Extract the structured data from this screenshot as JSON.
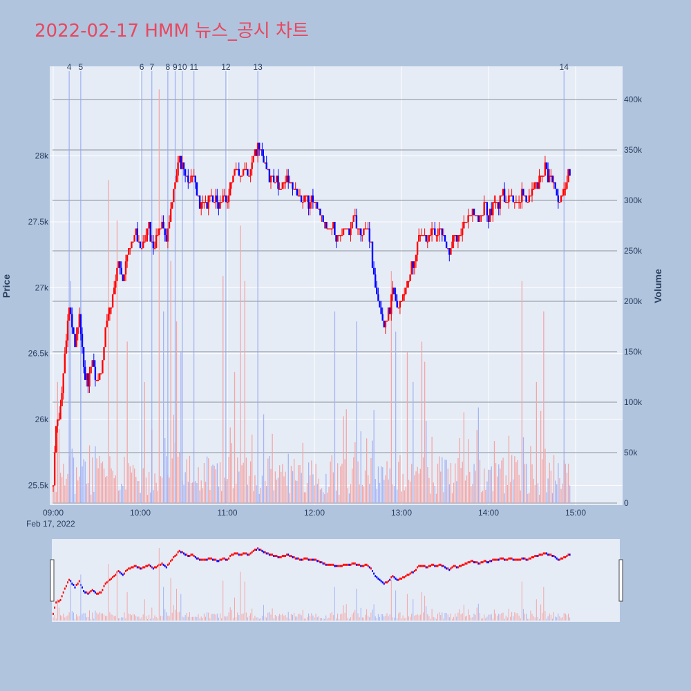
{
  "title": "2022-02-17 HMM 뉴스_공시 차트",
  "chart_data": {
    "type": "candlestick",
    "title": "2022-02-17 HMM 뉴스_공시 차트",
    "ylabel": "Price",
    "y2label": "Volume",
    "date_label": "Feb 17, 2022",
    "price_ylim": [
      25350,
      28680
    ],
    "volume_ylim": [
      0,
      430000
    ],
    "time_range": [
      "09:00",
      "15:30"
    ],
    "x_ticks": [
      "09:00",
      "10:00",
      "11:00",
      "12:00",
      "13:00",
      "14:00",
      "15:00"
    ],
    "price_ticks": [
      {
        "v": 25500,
        "label": "25.5k"
      },
      {
        "v": 26000,
        "label": "26k"
      },
      {
        "v": 26500,
        "label": "26.5k"
      },
      {
        "v": 27000,
        "label": "27k"
      },
      {
        "v": 27500,
        "label": "27.5k"
      },
      {
        "v": 28000,
        "label": "28k"
      }
    ],
    "volume_ticks": [
      {
        "v": 0,
        "label": "0"
      },
      {
        "v": 50000,
        "label": "50k"
      },
      {
        "v": 100000,
        "label": "100k"
      },
      {
        "v": 150000,
        "label": "150k"
      },
      {
        "v": 200000,
        "label": "200k"
      },
      {
        "v": 250000,
        "label": "250k"
      },
      {
        "v": 300000,
        "label": "300k"
      },
      {
        "v": 350000,
        "label": "350k"
      },
      {
        "v": 400000,
        "label": "400k"
      }
    ],
    "price_path": [
      [
        "09:00",
        25500
      ],
      [
        "09:02",
        25950
      ],
      [
        "09:05",
        26050
      ],
      [
        "09:07",
        26350
      ],
      [
        "09:09",
        26600
      ],
      [
        "09:11",
        26850
      ],
      [
        "09:13",
        26700
      ],
      [
        "09:15",
        26550
      ],
      [
        "09:18",
        26800
      ],
      [
        "09:21",
        26400
      ],
      [
        "09:24",
        26300
      ],
      [
        "09:27",
        26450
      ],
      [
        "09:30",
        26300
      ],
      [
        "09:33",
        26350
      ],
      [
        "09:36",
        26700
      ],
      [
        "09:39",
        26850
      ],
      [
        "09:42",
        27000
      ],
      [
        "09:45",
        27200
      ],
      [
        "09:48",
        27050
      ],
      [
        "09:51",
        27250
      ],
      [
        "09:54",
        27350
      ],
      [
        "09:57",
        27400
      ],
      [
        "10:00",
        27300
      ],
      [
        "10:03",
        27350
      ],
      [
        "10:06",
        27450
      ],
      [
        "10:09",
        27300
      ],
      [
        "10:12",
        27400
      ],
      [
        "10:15",
        27500
      ],
      [
        "10:18",
        27350
      ],
      [
        "10:21",
        27600
      ],
      [
        "10:24",
        27800
      ],
      [
        "10:27",
        28000
      ],
      [
        "10:30",
        27900
      ],
      [
        "10:33",
        27800
      ],
      [
        "10:36",
        27850
      ],
      [
        "10:39",
        27700
      ],
      [
        "10:42",
        27650
      ],
      [
        "10:45",
        27650
      ],
      [
        "10:48",
        27700
      ],
      [
        "10:51",
        27650
      ],
      [
        "10:54",
        27600
      ],
      [
        "10:57",
        27700
      ],
      [
        "11:00",
        27650
      ],
      [
        "11:03",
        27850
      ],
      [
        "11:06",
        27900
      ],
      [
        "11:09",
        27850
      ],
      [
        "11:12",
        27900
      ],
      [
        "11:15",
        27850
      ],
      [
        "11:18",
        28000
      ],
      [
        "11:21",
        28100
      ],
      [
        "11:24",
        28000
      ],
      [
        "11:27",
        27900
      ],
      [
        "11:30",
        27850
      ],
      [
        "11:33",
        27800
      ],
      [
        "11:36",
        27750
      ],
      [
        "11:39",
        27800
      ],
      [
        "11:42",
        27850
      ],
      [
        "11:45",
        27750
      ],
      [
        "11:48",
        27700
      ],
      [
        "11:51",
        27650
      ],
      [
        "11:54",
        27700
      ],
      [
        "11:57",
        27650
      ],
      [
        "12:00",
        27650
      ],
      [
        "12:03",
        27600
      ],
      [
        "12:06",
        27500
      ],
      [
        "12:09",
        27450
      ],
      [
        "12:12",
        27450
      ],
      [
        "12:15",
        27400
      ],
      [
        "12:18",
        27400
      ],
      [
        "12:21",
        27450
      ],
      [
        "12:24",
        27450
      ],
      [
        "12:27",
        27500
      ],
      [
        "12:30",
        27450
      ],
      [
        "12:33",
        27400
      ],
      [
        "12:36",
        27450
      ],
      [
        "12:39",
        27300
      ],
      [
        "12:42",
        27000
      ],
      [
        "12:45",
        26850
      ],
      [
        "12:48",
        26700
      ],
      [
        "12:51",
        26800
      ],
      [
        "12:54",
        27000
      ],
      [
        "12:57",
        26850
      ],
      [
        "13:00",
        26900
      ],
      [
        "13:03",
        27000
      ],
      [
        "13:06",
        27100
      ],
      [
        "13:09",
        27200
      ],
      [
        "13:12",
        27400
      ],
      [
        "13:15",
        27400
      ],
      [
        "13:18",
        27350
      ],
      [
        "13:21",
        27450
      ],
      [
        "13:24",
        27400
      ],
      [
        "13:27",
        27450
      ],
      [
        "13:30",
        27350
      ],
      [
        "13:33",
        27250
      ],
      [
        "13:36",
        27400
      ],
      [
        "13:39",
        27350
      ],
      [
        "13:42",
        27450
      ],
      [
        "13:45",
        27500
      ],
      [
        "13:48",
        27600
      ],
      [
        "13:51",
        27550
      ],
      [
        "13:54",
        27500
      ],
      [
        "13:57",
        27600
      ],
      [
        "14:00",
        27550
      ],
      [
        "14:03",
        27650
      ],
      [
        "14:06",
        27650
      ],
      [
        "14:09",
        27700
      ],
      [
        "14:12",
        27650
      ],
      [
        "14:15",
        27700
      ],
      [
        "14:18",
        27650
      ],
      [
        "14:21",
        27650
      ],
      [
        "14:24",
        27700
      ],
      [
        "14:27",
        27650
      ],
      [
        "14:30",
        27750
      ],
      [
        "14:33",
        27800
      ],
      [
        "14:36",
        27850
      ],
      [
        "14:39",
        27900
      ],
      [
        "14:42",
        27850
      ],
      [
        "14:45",
        27800
      ],
      [
        "14:48",
        27650
      ],
      [
        "14:51",
        27700
      ],
      [
        "14:54",
        27800
      ],
      [
        "14:56",
        27850
      ]
    ],
    "volume_spikes": [
      [
        "09:03",
        120000
      ],
      [
        "09:12",
        220000
      ],
      [
        "09:19",
        260000
      ],
      [
        "09:38",
        320000
      ],
      [
        "09:44",
        280000
      ],
      [
        "09:51",
        160000
      ],
      [
        "10:03",
        120000
      ],
      [
        "10:13",
        410000
      ],
      [
        "10:16",
        190000
      ],
      [
        "10:21",
        240000
      ],
      [
        "10:25",
        180000
      ],
      [
        "10:28",
        150000
      ],
      [
        "10:57",
        225000
      ],
      [
        "11:05",
        130000
      ],
      [
        "11:09",
        275000
      ],
      [
        "11:12",
        220000
      ],
      [
        "12:14",
        190000
      ],
      [
        "12:29",
        180000
      ],
      [
        "12:53",
        230000
      ],
      [
        "12:56",
        170000
      ],
      [
        "13:04",
        150000
      ],
      [
        "13:08",
        120000
      ],
      [
        "13:14",
        160000
      ],
      [
        "13:16",
        140000
      ],
      [
        "13:43",
        90000
      ],
      [
        "14:23",
        220000
      ],
      [
        "14:33",
        120000
      ],
      [
        "14:38",
        190000
      ]
    ],
    "events": [
      {
        "label": "4",
        "t": "09:11"
      },
      {
        "label": "5",
        "t": "09:19"
      },
      {
        "label": "6",
        "t": "10:01"
      },
      {
        "label": "7",
        "t": "10:08"
      },
      {
        "label": "8",
        "t": "10:19"
      },
      {
        "label": "9",
        "t": "10:24"
      },
      {
        "label": "10",
        "t": "10:29"
      },
      {
        "label": "11",
        "t": "10:37"
      },
      {
        "label": "12",
        "t": "10:59"
      },
      {
        "label": "13",
        "t": "11:21"
      },
      {
        "label": "14",
        "t": "14:52"
      }
    ],
    "colors": {
      "up": "#ff0000",
      "down": "#0000ff",
      "up_volume": "#f4a6a6",
      "down_volume": "#a6b4f4",
      "event_line": "#8fa3f0"
    },
    "rangeslider": true
  }
}
